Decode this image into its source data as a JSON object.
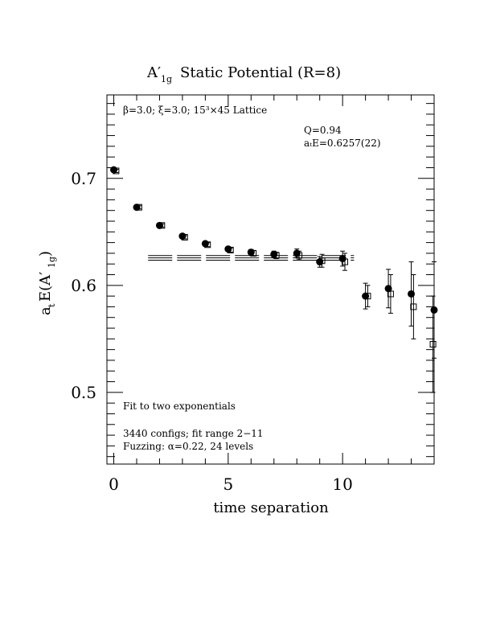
{
  "chart_data": {
    "type": "scatter",
    "title_main": "A′",
    "title_sub": "1g",
    "title_rest": "Static Potential (R=8)",
    "xlabel": "time separation",
    "ylabel_a": "a",
    "ylabel_t": "t",
    "ylabel_e": "E(A′",
    "ylabel_sub": "1g",
    "ylabel_close": ")",
    "xlim": [
      -0.3,
      14.0
    ],
    "ylim": [
      0.433,
      0.778
    ],
    "xticks": [
      0,
      5,
      10
    ],
    "yticks": [
      0.5,
      0.6,
      0.7
    ],
    "xtick_labels": [
      "0",
      "5",
      "10"
    ],
    "ytick_labels": [
      "0.5",
      "0.6",
      "0.7"
    ],
    "annotations": {
      "lattice": "β=3.0; ξ=3.0; 15³×45 Lattice",
      "q": "Q=0.94",
      "energy": "aₜE=0.6257(22)",
      "fit_type": "Fit to two exponentials",
      "configs": "3440 configs; fit range 2−11",
      "fuzzing": "Fuzzing: α=0.22, 24 levels"
    },
    "fit": {
      "x_range": [
        1.5,
        10.5
      ],
      "value": 0.6257,
      "error": 0.0022
    },
    "series": [
      {
        "marker": "filled-circle",
        "points": [
          {
            "x": 0,
            "y": 0.708,
            "err": 0.0015
          },
          {
            "x": 1,
            "y": 0.673,
            "err": 0.0015
          },
          {
            "x": 2,
            "y": 0.656,
            "err": 0.0015
          },
          {
            "x": 3,
            "y": 0.646,
            "err": 0.0015
          },
          {
            "x": 4,
            "y": 0.639,
            "err": 0.0018
          },
          {
            "x": 5,
            "y": 0.634,
            "err": 0.002
          },
          {
            "x": 6,
            "y": 0.631,
            "err": 0.0025
          },
          {
            "x": 7,
            "y": 0.629,
            "err": 0.003
          },
          {
            "x": 8,
            "y": 0.63,
            "err": 0.004
          },
          {
            "x": 9,
            "y": 0.622,
            "err": 0.005
          },
          {
            "x": 10,
            "y": 0.625,
            "err": 0.007
          },
          {
            "x": 11,
            "y": 0.59,
            "err": 0.012
          },
          {
            "x": 12,
            "y": 0.597,
            "err": 0.018
          },
          {
            "x": 13,
            "y": 0.592,
            "err": 0.03
          },
          {
            "x": 14,
            "y": 0.577,
            "err": 0.045
          }
        ]
      },
      {
        "marker": "open-square",
        "points": [
          {
            "x": 0.1,
            "y": 0.707,
            "err": 0.0015
          },
          {
            "x": 1.1,
            "y": 0.673,
            "err": 0.0015
          },
          {
            "x": 2.1,
            "y": 0.656,
            "err": 0.0015
          },
          {
            "x": 3.1,
            "y": 0.645,
            "err": 0.0015
          },
          {
            "x": 4.1,
            "y": 0.638,
            "err": 0.0018
          },
          {
            "x": 5.1,
            "y": 0.633,
            "err": 0.002
          },
          {
            "x": 6.1,
            "y": 0.63,
            "err": 0.0025
          },
          {
            "x": 7.1,
            "y": 0.628,
            "err": 0.003
          },
          {
            "x": 8.1,
            "y": 0.628,
            "err": 0.004
          },
          {
            "x": 9.1,
            "y": 0.623,
            "err": 0.006
          },
          {
            "x": 10.1,
            "y": 0.622,
            "err": 0.008
          },
          {
            "x": 11.1,
            "y": 0.59,
            "err": 0.01
          },
          {
            "x": 12.1,
            "y": 0.592,
            "err": 0.018
          },
          {
            "x": 13.1,
            "y": 0.58,
            "err": 0.03
          },
          {
            "x": 13.95,
            "y": 0.545,
            "err": 0.045
          }
        ]
      }
    ]
  }
}
